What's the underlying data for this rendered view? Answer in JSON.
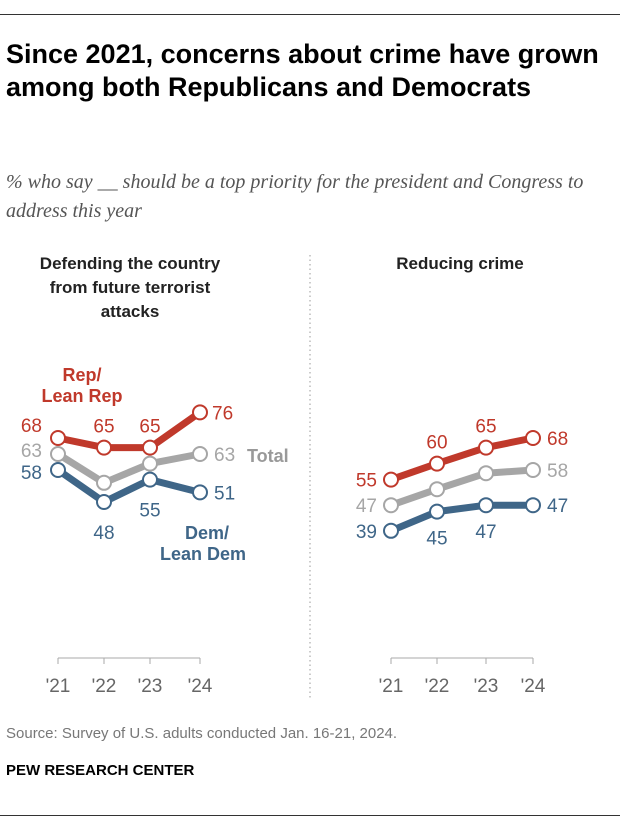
{
  "title": "Since 2021, concerns about crime have grown among both Republicans and Democrats",
  "subtitle": "% who say __ should be a top priority for the president and Congress to address this year",
  "source": "Source: Survey of U.S. adults conducted Jan. 16-21, 2024.",
  "brand": "PEW RESEARCH CENTER",
  "colors": {
    "rep": "#c0392b",
    "total": "#a6a6a6",
    "dem": "#3f6688"
  },
  "chart_data": [
    {
      "type": "line",
      "title": "Defending the country from future terrorist attacks",
      "categories": [
        "'21",
        "'22",
        "'23",
        "'24"
      ],
      "series": [
        {
          "name": "Rep/ Lean Rep",
          "key": "rep",
          "values": [
            68,
            65,
            65,
            76
          ],
          "labels": [
            "68",
            "65",
            "65",
            "76"
          ]
        },
        {
          "name": "Total",
          "key": "total",
          "values": [
            63,
            54,
            60,
            63
          ],
          "labels": [
            "63",
            "",
            "",
            "63"
          ]
        },
        {
          "name": "Dem/ Lean Dem",
          "key": "dem",
          "values": [
            58,
            48,
            55,
            51
          ],
          "labels": [
            "58",
            "48",
            "55",
            "51"
          ]
        }
      ]
    },
    {
      "type": "line",
      "title": "Reducing crime",
      "categories": [
        "'21",
        "'22",
        "'23",
        "'24"
      ],
      "series": [
        {
          "key": "rep",
          "values": [
            55,
            60,
            65,
            68
          ],
          "labels": [
            "55",
            "60",
            "65",
            "68"
          ]
        },
        {
          "key": "total",
          "values": [
            47,
            52,
            57,
            58
          ],
          "labels": [
            "47",
            "",
            "",
            "58"
          ]
        },
        {
          "key": "dem",
          "values": [
            39,
            45,
            47,
            47
          ],
          "labels": [
            "39",
            "45",
            "47",
            "47"
          ]
        }
      ]
    }
  ]
}
